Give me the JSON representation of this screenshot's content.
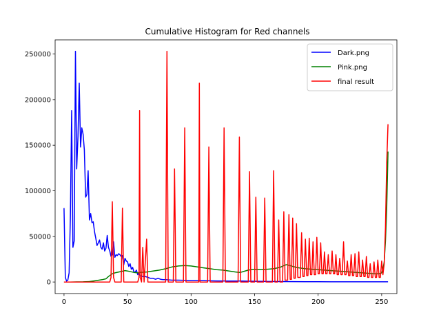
{
  "chart_data": {
    "type": "line",
    "title": "Cumulative Histogram for Red channels",
    "xlabel": "",
    "ylabel": "",
    "xlim": [
      -7,
      262
    ],
    "ylim": [
      -12700,
      265500
    ],
    "x_ticks": [
      0,
      50,
      100,
      150,
      200,
      250
    ],
    "y_ticks": [
      0,
      50000,
      100000,
      150000,
      200000,
      250000
    ],
    "grid": false,
    "legend_position": "top-right",
    "series": [
      {
        "name": "Dark.png",
        "color": "#0000ff",
        "points": [
          [
            0,
            81000
          ],
          [
            1,
            5000
          ],
          [
            2,
            1000
          ],
          [
            3,
            2000
          ],
          [
            4,
            10000
          ],
          [
            5,
            70000
          ],
          [
            6,
            188000
          ],
          [
            7,
            38000
          ],
          [
            8,
            45000
          ],
          [
            9,
            253000
          ],
          [
            10,
            124000
          ],
          [
            11,
            160000
          ],
          [
            12,
            218000
          ],
          [
            13,
            148000
          ],
          [
            14,
            169000
          ],
          [
            15,
            162000
          ],
          [
            16,
            145000
          ],
          [
            17,
            93000
          ],
          [
            18,
            96000
          ],
          [
            19,
            122000
          ],
          [
            20,
            68000
          ],
          [
            21,
            75000
          ],
          [
            22,
            65000
          ],
          [
            23,
            66000
          ],
          [
            24,
            55000
          ],
          [
            25,
            48000
          ],
          [
            26,
            40000
          ],
          [
            27,
            43000
          ],
          [
            28,
            46000
          ],
          [
            29,
            38000
          ],
          [
            30,
            36000
          ],
          [
            31,
            43000
          ],
          [
            32,
            34000
          ],
          [
            33,
            37000
          ],
          [
            34,
            51000
          ],
          [
            35,
            38000
          ],
          [
            36,
            34000
          ],
          [
            37,
            28000
          ],
          [
            38,
            30000
          ],
          [
            39,
            44000
          ],
          [
            40,
            27000
          ],
          [
            41,
            30000
          ],
          [
            42,
            29000
          ],
          [
            43,
            31000
          ],
          [
            44,
            30000
          ],
          [
            45,
            28000
          ],
          [
            46,
            29000
          ],
          [
            47,
            19000
          ],
          [
            48,
            26000
          ],
          [
            49,
            23000
          ],
          [
            50,
            22000
          ],
          [
            51,
            17000
          ],
          [
            52,
            20000
          ],
          [
            53,
            14000
          ],
          [
            54,
            16000
          ],
          [
            55,
            11000
          ],
          [
            56,
            11000
          ],
          [
            57,
            13000
          ],
          [
            58,
            8000
          ],
          [
            59,
            10000
          ],
          [
            60,
            7000
          ],
          [
            62,
            6000
          ],
          [
            64,
            6000
          ],
          [
            66,
            5000
          ],
          [
            68,
            4000
          ],
          [
            70,
            4000
          ],
          [
            72,
            3000
          ],
          [
            74,
            4000
          ],
          [
            76,
            3000
          ],
          [
            78,
            2500
          ],
          [
            80,
            2500
          ],
          [
            85,
            2000
          ],
          [
            90,
            2000
          ],
          [
            95,
            1800
          ],
          [
            100,
            1500
          ],
          [
            110,
            1500
          ],
          [
            120,
            1200
          ],
          [
            130,
            1000
          ],
          [
            140,
            1000
          ],
          [
            150,
            800
          ],
          [
            160,
            600
          ],
          [
            170,
            500
          ],
          [
            180,
            400
          ],
          [
            190,
            300
          ],
          [
            200,
            300
          ],
          [
            210,
            200
          ],
          [
            220,
            200
          ],
          [
            230,
            200
          ],
          [
            240,
            200
          ],
          [
            250,
            200
          ],
          [
            255,
            200
          ]
        ]
      },
      {
        "name": "Pink.png",
        "color": "#008000",
        "points": [
          [
            0,
            0
          ],
          [
            5,
            0
          ],
          [
            10,
            100
          ],
          [
            15,
            200
          ],
          [
            20,
            500
          ],
          [
            25,
            1500
          ],
          [
            30,
            2500
          ],
          [
            33,
            3500
          ],
          [
            35,
            6000
          ],
          [
            38,
            9000
          ],
          [
            40,
            10000
          ],
          [
            45,
            11500
          ],
          [
            48,
            12500
          ],
          [
            50,
            12000
          ],
          [
            55,
            10500
          ],
          [
            58,
            10000
          ],
          [
            60,
            10500
          ],
          [
            65,
            11000
          ],
          [
            70,
            12000
          ],
          [
            75,
            13000
          ],
          [
            80,
            14500
          ],
          [
            85,
            16500
          ],
          [
            90,
            17500
          ],
          [
            95,
            18000
          ],
          [
            100,
            17500
          ],
          [
            105,
            16500
          ],
          [
            110,
            15500
          ],
          [
            115,
            14500
          ],
          [
            120,
            13500
          ],
          [
            125,
            13000
          ],
          [
            130,
            12000
          ],
          [
            135,
            11000
          ],
          [
            138,
            10500
          ],
          [
            140,
            11000
          ],
          [
            145,
            13000
          ],
          [
            150,
            14000
          ],
          [
            155,
            13500
          ],
          [
            160,
            14000
          ],
          [
            165,
            14500
          ],
          [
            170,
            16000
          ],
          [
            173,
            18000
          ],
          [
            175,
            19000
          ],
          [
            178,
            18000
          ],
          [
            180,
            17000
          ],
          [
            185,
            15500
          ],
          [
            190,
            14500
          ],
          [
            195,
            14000
          ],
          [
            200,
            13500
          ],
          [
            205,
            13000
          ],
          [
            210,
            12500
          ],
          [
            215,
            12000
          ],
          [
            220,
            11500
          ],
          [
            225,
            11000
          ],
          [
            230,
            10500
          ],
          [
            235,
            10000
          ],
          [
            240,
            9500
          ],
          [
            245,
            9000
          ],
          [
            248,
            9000
          ],
          [
            250,
            10000
          ],
          [
            251,
            14000
          ],
          [
            252,
            22000
          ],
          [
            253,
            45000
          ],
          [
            254,
            80000
          ],
          [
            255,
            143000
          ]
        ]
      },
      {
        "name": "final result",
        "color": "#ff0000",
        "points": [
          [
            0,
            0
          ],
          [
            36,
            0
          ],
          [
            37,
            5000
          ],
          [
            38,
            88000
          ],
          [
            39,
            5000
          ],
          [
            40,
            0
          ],
          [
            45,
            0
          ],
          [
            46,
            81000
          ],
          [
            47,
            0
          ],
          [
            58,
            0
          ],
          [
            59,
            5000
          ],
          [
            59.5,
            188000
          ],
          [
            60,
            5000
          ],
          [
            61,
            0
          ],
          [
            62,
            38000
          ],
          [
            63,
            0
          ],
          [
            65,
            47000
          ],
          [
            66,
            0
          ],
          [
            80,
            0
          ],
          [
            81,
            253000
          ],
          [
            82,
            0
          ],
          [
            86,
            0
          ],
          [
            87,
            124000
          ],
          [
            88,
            0
          ],
          [
            94,
            0
          ],
          [
            95,
            169000
          ],
          [
            96,
            0
          ],
          [
            106,
            0
          ],
          [
            106.5,
            218000
          ],
          [
            107,
            0
          ],
          [
            113,
            0
          ],
          [
            114,
            148000
          ],
          [
            115,
            0
          ],
          [
            125,
            0
          ],
          [
            126,
            169000
          ],
          [
            127,
            0
          ],
          [
            137,
            0
          ],
          [
            138,
            159000
          ],
          [
            139,
            0
          ],
          [
            145,
            0
          ],
          [
            146,
            121000
          ],
          [
            147,
            0
          ],
          [
            150,
            0
          ],
          [
            151,
            93000
          ],
          [
            152,
            0
          ],
          [
            157,
            0
          ],
          [
            158,
            92000
          ],
          [
            159,
            0
          ],
          [
            164,
            0
          ],
          [
            165,
            122000
          ],
          [
            166,
            0
          ],
          [
            168,
            0
          ],
          [
            169,
            68000
          ],
          [
            170,
            0
          ],
          [
            172,
            0
          ],
          [
            173,
            77000
          ],
          [
            174,
            2000
          ],
          [
            176,
            2000
          ],
          [
            177,
            74000
          ],
          [
            178,
            3000
          ],
          [
            179,
            3000
          ],
          [
            180,
            70000
          ],
          [
            181,
            4000
          ],
          [
            182,
            4000
          ],
          [
            183,
            64000
          ],
          [
            184,
            5000
          ],
          [
            186,
            5000
          ],
          [
            187,
            54000
          ],
          [
            188,
            6000
          ],
          [
            189,
            6000
          ],
          [
            190,
            47000
          ],
          [
            191,
            7000
          ],
          [
            192,
            7000
          ],
          [
            193,
            48000
          ],
          [
            194,
            8000
          ],
          [
            195,
            8000
          ],
          [
            196,
            44000
          ],
          [
            197,
            8000
          ],
          [
            198,
            8000
          ],
          [
            199,
            49000
          ],
          [
            200,
            9000
          ],
          [
            201,
            9000
          ],
          [
            202,
            43000
          ],
          [
            203,
            9000
          ],
          [
            204,
            9000
          ],
          [
            205,
            33000
          ],
          [
            206,
            9000
          ],
          [
            207,
            9000
          ],
          [
            208,
            30000
          ],
          [
            209,
            9000
          ],
          [
            210,
            9000
          ],
          [
            211,
            34000
          ],
          [
            212,
            9000
          ],
          [
            213,
            9000
          ],
          [
            214,
            30000
          ],
          [
            215,
            8000
          ],
          [
            216,
            8000
          ],
          [
            217,
            26000
          ],
          [
            218,
            8000
          ],
          [
            219,
            8000
          ],
          [
            220,
            44000
          ],
          [
            221,
            8000
          ],
          [
            222,
            8000
          ],
          [
            223,
            23000
          ],
          [
            224,
            7000
          ],
          [
            225,
            7000
          ],
          [
            226,
            30000
          ],
          [
            227,
            7000
          ],
          [
            228,
            7000
          ],
          [
            229,
            31000
          ],
          [
            230,
            6000
          ],
          [
            231,
            6000
          ],
          [
            232,
            33000
          ],
          [
            233,
            6000
          ],
          [
            234,
            6000
          ],
          [
            235,
            24000
          ],
          [
            236,
            6000
          ],
          [
            237,
            6000
          ],
          [
            238,
            28000
          ],
          [
            239,
            5000
          ],
          [
            240,
            5000
          ],
          [
            241,
            20000
          ],
          [
            242,
            5000
          ],
          [
            243,
            5000
          ],
          [
            244,
            22000
          ],
          [
            245,
            5000
          ],
          [
            246,
            5000
          ],
          [
            247,
            24000
          ],
          [
            248,
            5000
          ],
          [
            249,
            5000
          ],
          [
            250,
            23000
          ],
          [
            251,
            8000
          ],
          [
            252,
            20000
          ],
          [
            253,
            60000
          ],
          [
            254,
            130000
          ],
          [
            255,
            173000
          ]
        ]
      }
    ]
  }
}
